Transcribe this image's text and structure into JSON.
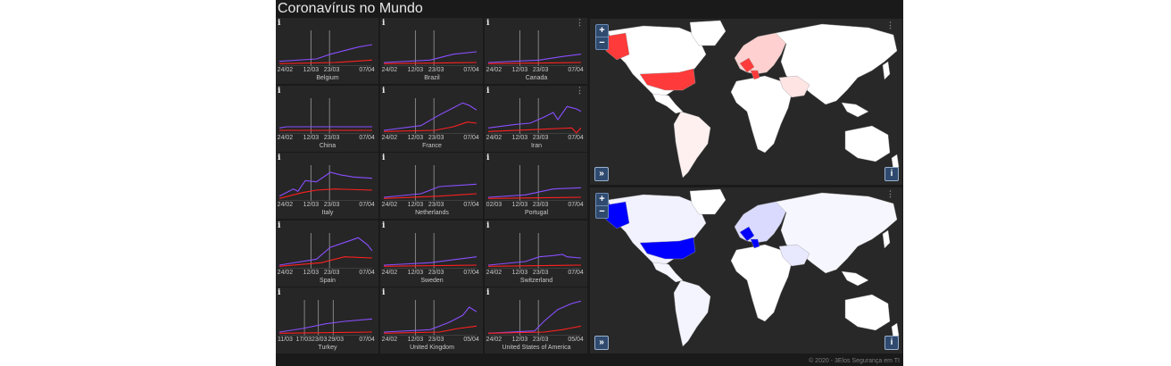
{
  "page": {
    "title": "Coronavírus no Mundo",
    "footer": "© 2020 - 3Elos Segurança em TI"
  },
  "icons": {
    "info": "info-icon",
    "menu": "vertical-ellipsis-icon",
    "expand": "double-chevron-right-icon"
  },
  "colors": {
    "confirmed_line": "#8a4fff",
    "deaths_line": "#ff2020",
    "map_cases": "#ff3a3a",
    "map_deaths": "#0000ff",
    "background": "#1a1a1a",
    "panel": "#262626"
  },
  "charts": [
    {
      "country": "Belgium",
      "ticks": [
        "24/02",
        "12/03",
        "23/03",
        "07/04"
      ]
    },
    {
      "country": "Brazil",
      "ticks": [
        "24/02",
        "12/03",
        "23/03",
        "07/04"
      ]
    },
    {
      "country": "Canada",
      "ticks": [
        "24/02",
        "12/03",
        "23/03",
        "07/04"
      ]
    },
    {
      "country": "China",
      "ticks": [
        "24/02",
        "12/03",
        "23/03",
        "07/04"
      ]
    },
    {
      "country": "France",
      "ticks": [
        "24/02",
        "12/03",
        "23/03",
        "07/04"
      ]
    },
    {
      "country": "Iran",
      "ticks": [
        "24/02",
        "12/03",
        "23/03",
        "07/04"
      ]
    },
    {
      "country": "Italy",
      "ticks": [
        "24/02",
        "12/03",
        "23/03",
        "07/04"
      ]
    },
    {
      "country": "Netherlands",
      "ticks": [
        "24/02",
        "12/03",
        "23/03",
        "07/04"
      ]
    },
    {
      "country": "Portugal",
      "ticks": [
        "02/03",
        "12/03",
        "23/03",
        "07/04"
      ]
    },
    {
      "country": "Spain",
      "ticks": [
        "24/02",
        "12/03",
        "23/03",
        "07/04"
      ]
    },
    {
      "country": "Sweden",
      "ticks": [
        "24/02",
        "12/03",
        "23/03",
        "07/04"
      ]
    },
    {
      "country": "Switzerland",
      "ticks": [
        "24/02",
        "12/03",
        "23/03",
        "07/04"
      ]
    },
    {
      "country": "Turkey",
      "ticks": [
        "11/03",
        "17/03",
        "23/03",
        "29/03",
        "07/04"
      ]
    },
    {
      "country": "United Kingdom",
      "ticks": [
        "24/02",
        "12/03",
        "23/03",
        "05/04"
      ]
    },
    {
      "country": "United States of America",
      "ticks": [
        "24/02",
        "12/03",
        "23/03",
        "05/04"
      ]
    }
  ],
  "maps": [
    {
      "name": "confirmed-cases-map",
      "zoom_in": "+",
      "zoom_out": "−",
      "expand": "»",
      "info": "i"
    },
    {
      "name": "deaths-map",
      "zoom_in": "+",
      "zoom_out": "−",
      "expand": "»",
      "info": "i"
    }
  ]
}
